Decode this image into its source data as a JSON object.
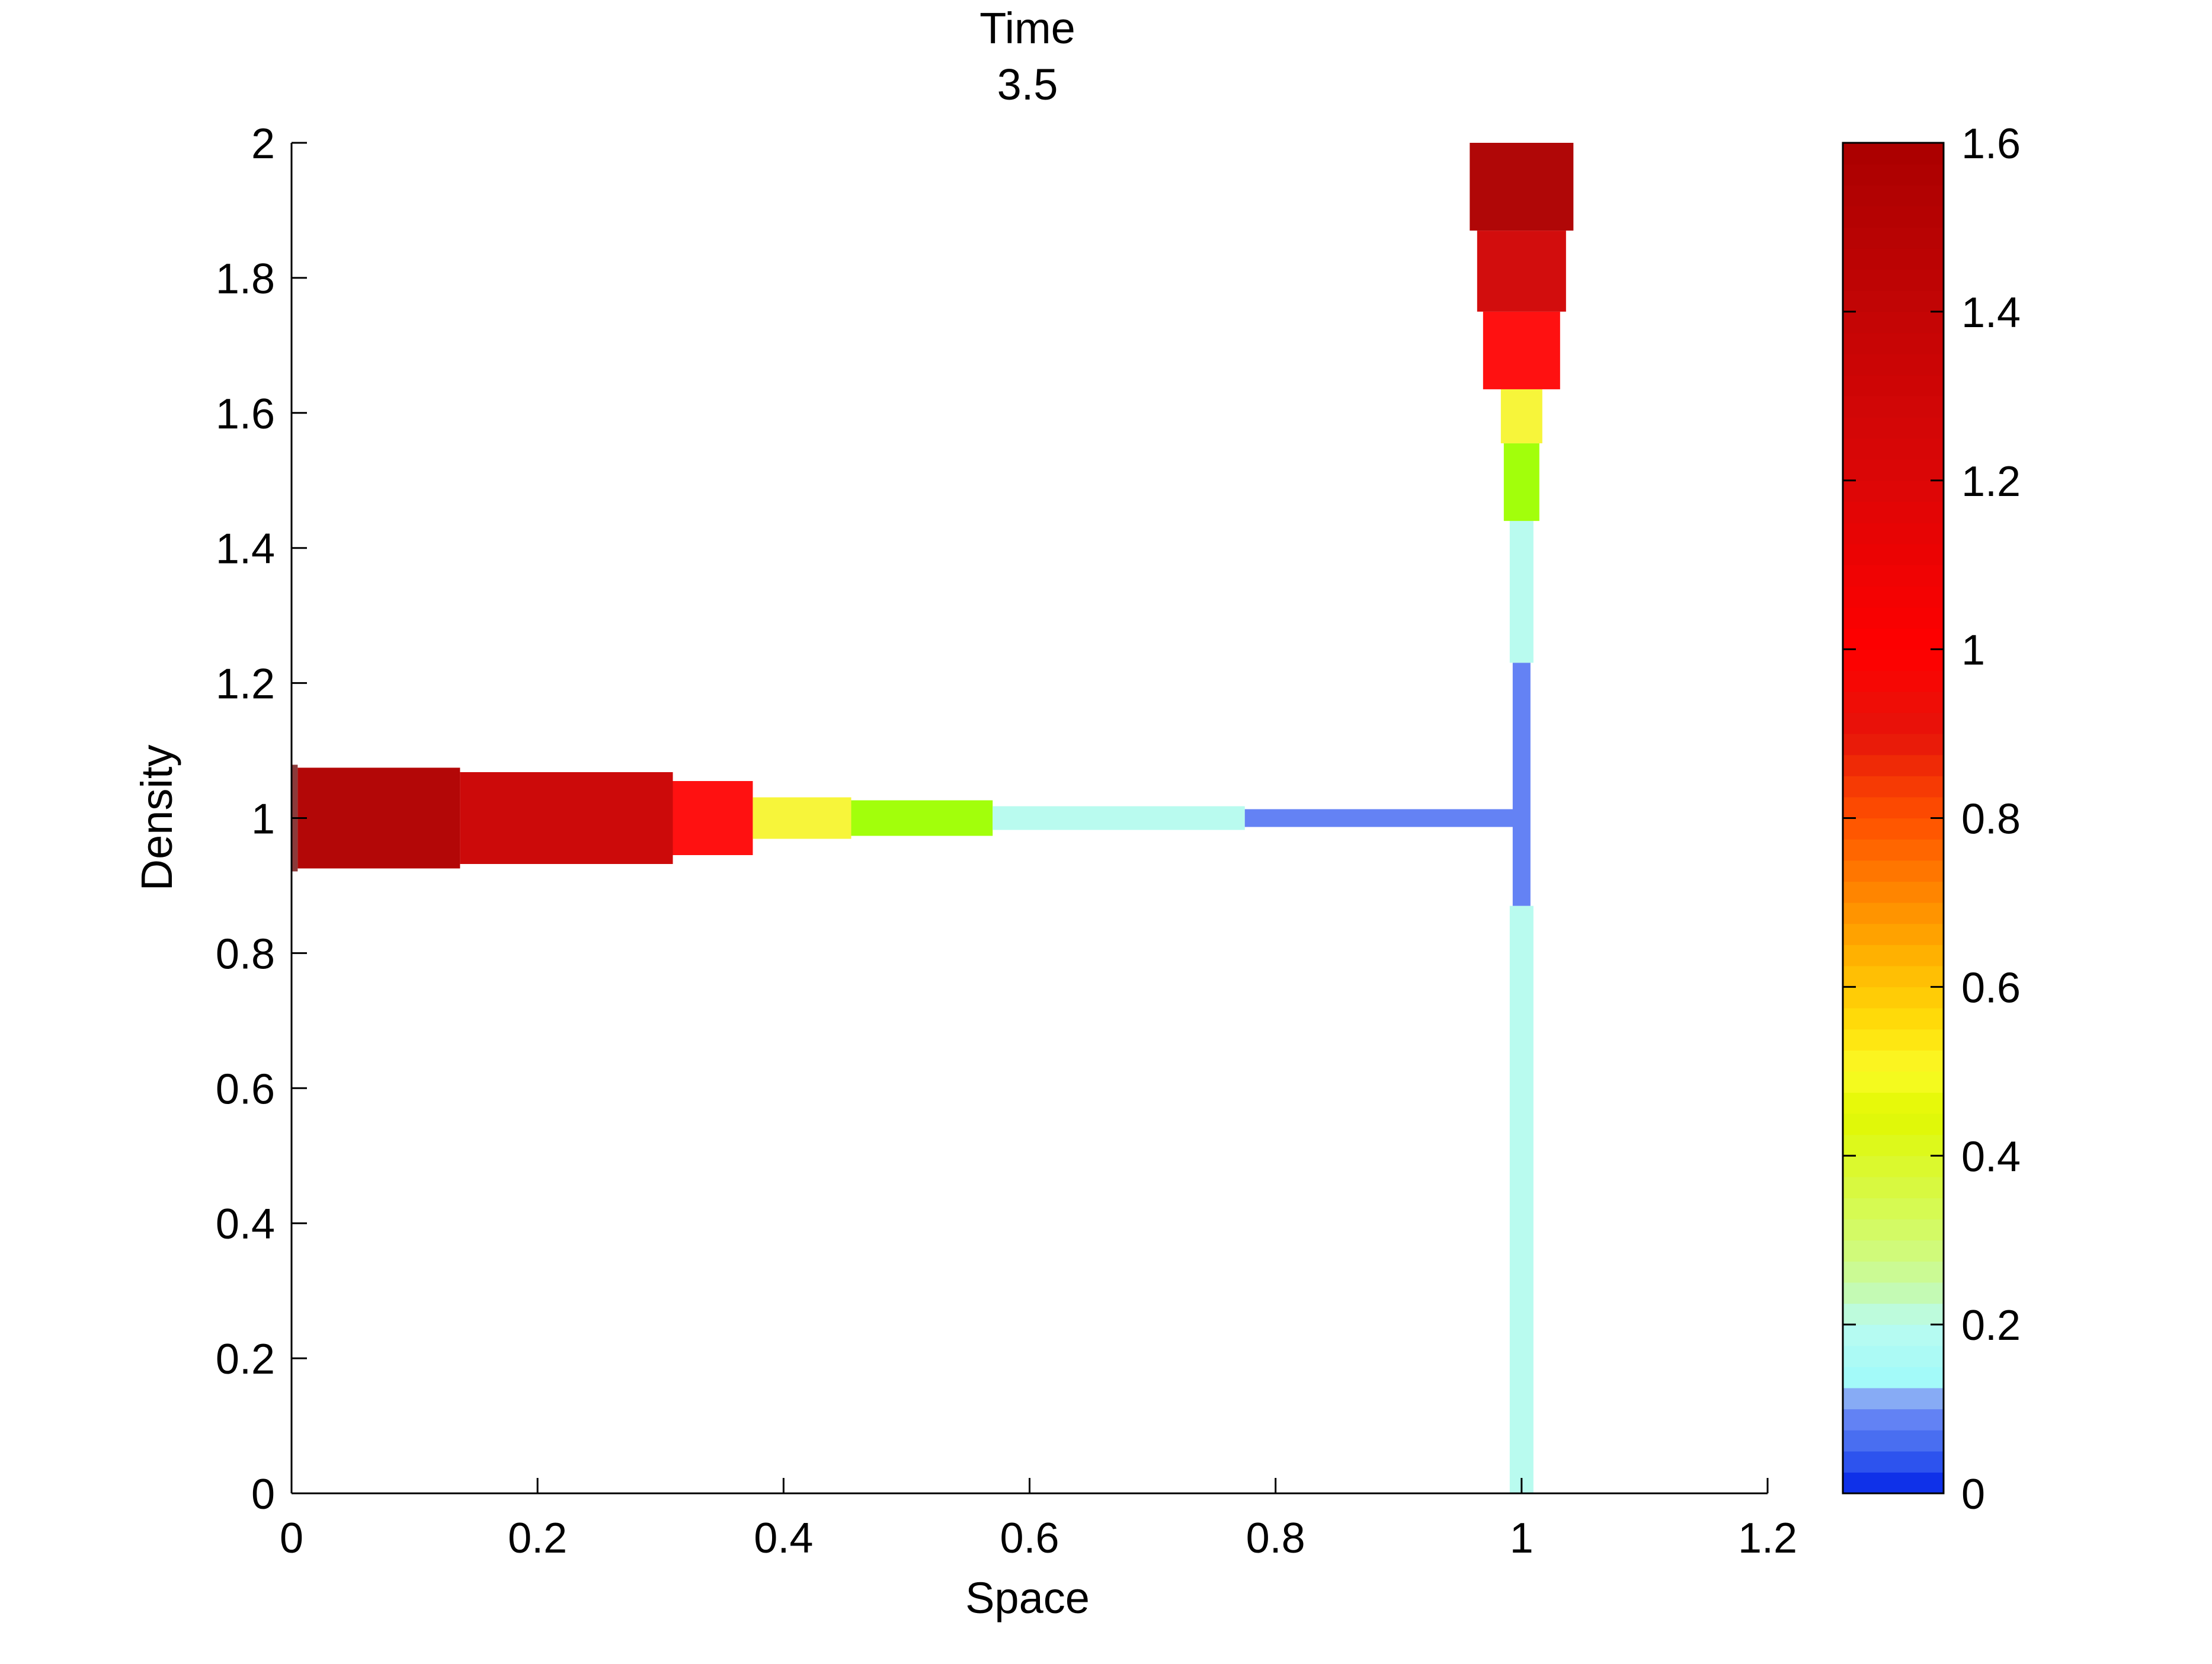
{
  "chart_data": {
    "type": "network-density-segments",
    "title_lines": [
      "Time",
      "3.5"
    ],
    "xlabel": "Space",
    "ylabel": "Density",
    "xlim": [
      0,
      1.2
    ],
    "ylim": [
      0,
      2
    ],
    "xticks": [
      "0",
      "0.2",
      "0.4",
      "0.6",
      "0.8",
      "1",
      "1.2"
    ],
    "yticks": [
      "0",
      "0.2",
      "0.4",
      "0.6",
      "0.8",
      "1",
      "1.2",
      "1.4",
      "1.6",
      "1.8",
      "2"
    ],
    "grid": false,
    "colorbar": {
      "range": [
        0,
        1.6
      ],
      "ticks": [
        "0",
        "0.2",
        "0.4",
        "0.6",
        "0.8",
        "1",
        "1.2",
        "1.4",
        "1.6"
      ],
      "colormap": "jet-like (blue → cyan → green → yellow → orange → red → dark red)"
    },
    "horizontal_segments": [
      {
        "x0": 0.0,
        "x1": 0.005,
        "y": 1.0,
        "value": 1.6,
        "color": "#8b3a3a"
      },
      {
        "x0": 0.005,
        "x1": 0.137,
        "y": 1.0,
        "value": 1.5,
        "color": "#b30707"
      },
      {
        "x0": 0.137,
        "x1": 0.31,
        "y": 1.0,
        "value": 1.35,
        "color": "#cc0a0a"
      },
      {
        "x0": 0.31,
        "x1": 0.375,
        "y": 1.0,
        "value": 1.05,
        "color": "#ff1111"
      },
      {
        "x0": 0.375,
        "x1": 0.455,
        "y": 1.0,
        "value": 0.5,
        "color": "#f7f53a"
      },
      {
        "x0": 0.455,
        "x1": 0.57,
        "y": 1.0,
        "value": 0.4,
        "color": "#a2ff0b"
      },
      {
        "x0": 0.57,
        "x1": 0.775,
        "y": 1.0,
        "value": 0.2,
        "color": "#b9fbef"
      },
      {
        "x0": 0.775,
        "x1": 0.995,
        "y": 1.0,
        "value": 0.1,
        "color": "#6482f4"
      }
    ],
    "vertical_segments": [
      {
        "x": 1.0,
        "y0": 0.0,
        "y1": 0.87,
        "value": 0.2,
        "color": "#b9fbef"
      },
      {
        "x": 1.0,
        "y0": 0.87,
        "y1": 1.23,
        "value": 0.1,
        "color": "#6482f4"
      },
      {
        "x": 1.0,
        "y0": 1.23,
        "y1": 1.44,
        "value": 0.2,
        "color": "#b9fbef"
      },
      {
        "x": 1.0,
        "y0": 1.44,
        "y1": 1.555,
        "value": 0.4,
        "color": "#a2ff0b"
      },
      {
        "x": 1.0,
        "y0": 1.555,
        "y1": 1.635,
        "value": 0.5,
        "color": "#f7f53a"
      },
      {
        "x": 1.0,
        "y0": 1.635,
        "y1": 1.75,
        "value": 1.1,
        "color": "#ff1111"
      },
      {
        "x": 1.0,
        "y0": 1.75,
        "y1": 1.87,
        "value": 1.3,
        "color": "#d20d0d"
      },
      {
        "x": 1.0,
        "y0": 1.87,
        "y1": 2.0,
        "value": 1.55,
        "color": "#b00707"
      }
    ]
  }
}
